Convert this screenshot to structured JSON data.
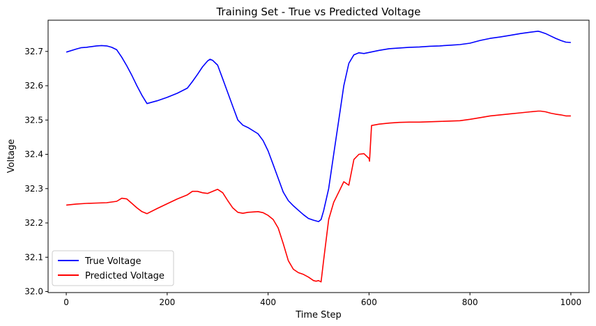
{
  "chart_data": {
    "type": "line",
    "title": "Training Set - True vs Predicted Voltage",
    "xlabel": "Time Step",
    "ylabel": "Voltage",
    "xlim": [
      -36,
      1036
    ],
    "ylim": [
      31.997,
      32.791
    ],
    "xticks": [
      0,
      200,
      400,
      600,
      800,
      1000
    ],
    "yticks": [
      32.0,
      32.1,
      32.2,
      32.3,
      32.4,
      32.5,
      32.6,
      32.7
    ],
    "grid": false,
    "legend_position": "lower-left",
    "series": [
      {
        "name": "True Voltage",
        "color": "#0000ff",
        "x": [
          0,
          20,
          30,
          40,
          50,
          60,
          70,
          80,
          90,
          100,
          110,
          120,
          130,
          140,
          150,
          160,
          170,
          180,
          200,
          220,
          240,
          250,
          260,
          270,
          280,
          285,
          290,
          300,
          310,
          320,
          330,
          340,
          350,
          360,
          380,
          390,
          400,
          410,
          420,
          430,
          440,
          450,
          460,
          470,
          480,
          490,
          500,
          505,
          510,
          520,
          530,
          540,
          550,
          560,
          570,
          580,
          590,
          600,
          620,
          640,
          660,
          680,
          700,
          720,
          740,
          760,
          780,
          800,
          820,
          840,
          860,
          880,
          900,
          920,
          935,
          940,
          950,
          960,
          970,
          980,
          990,
          1000
        ],
        "values": [
          32.698,
          32.707,
          32.711,
          32.712,
          32.714,
          32.716,
          32.717,
          32.716,
          32.712,
          32.705,
          32.683,
          32.658,
          32.63,
          32.6,
          32.572,
          32.548,
          32.552,
          32.556,
          32.566,
          32.578,
          32.593,
          32.612,
          32.633,
          32.655,
          32.672,
          32.677,
          32.674,
          32.66,
          32.62,
          32.58,
          32.54,
          32.5,
          32.485,
          32.478,
          32.46,
          32.44,
          32.41,
          32.37,
          32.33,
          32.29,
          32.265,
          32.25,
          32.237,
          32.224,
          32.213,
          32.208,
          32.204,
          32.21,
          32.235,
          32.3,
          32.4,
          32.5,
          32.6,
          32.665,
          32.69,
          32.696,
          32.694,
          32.697,
          32.703,
          32.708,
          32.71,
          32.712,
          32.713,
          32.715,
          32.716,
          32.718,
          32.72,
          32.724,
          32.732,
          32.738,
          32.742,
          32.747,
          32.752,
          32.756,
          32.759,
          32.757,
          32.752,
          32.745,
          32.738,
          32.732,
          32.727,
          32.726
        ]
      },
      {
        "name": "Predicted Voltage",
        "color": "#ff0000",
        "x": [
          0,
          20,
          40,
          60,
          80,
          100,
          110,
          120,
          130,
          140,
          150,
          160,
          180,
          200,
          220,
          240,
          250,
          260,
          270,
          280,
          290,
          300,
          310,
          320,
          330,
          340,
          350,
          360,
          380,
          390,
          400,
          410,
          420,
          430,
          440,
          450,
          460,
          470,
          480,
          490,
          495,
          500,
          505,
          510,
          520,
          530,
          540,
          550,
          560,
          570,
          580,
          590,
          600,
          601,
          605,
          620,
          640,
          660,
          680,
          700,
          720,
          740,
          760,
          780,
          800,
          820,
          840,
          860,
          880,
          900,
          920,
          935,
          940,
          950,
          960,
          970,
          980,
          990,
          1000
        ],
        "values": [
          32.252,
          32.255,
          32.257,
          32.258,
          32.259,
          32.263,
          32.272,
          32.27,
          32.257,
          32.244,
          32.233,
          32.227,
          32.242,
          32.256,
          32.27,
          32.282,
          32.292,
          32.292,
          32.288,
          32.286,
          32.292,
          32.298,
          32.288,
          32.265,
          32.244,
          32.231,
          32.228,
          32.231,
          32.233,
          32.23,
          32.222,
          32.21,
          32.185,
          32.14,
          32.09,
          32.065,
          32.055,
          32.05,
          32.042,
          32.032,
          32.03,
          32.032,
          32.028,
          32.09,
          32.21,
          32.26,
          32.29,
          32.32,
          32.31,
          32.385,
          32.4,
          32.402,
          32.388,
          32.38,
          32.484,
          32.488,
          32.491,
          32.493,
          32.494,
          32.494,
          32.495,
          32.496,
          32.497,
          32.498,
          32.502,
          32.507,
          32.512,
          32.515,
          32.518,
          32.521,
          32.524,
          32.526,
          32.526,
          32.524,
          32.52,
          32.517,
          32.515,
          32.512,
          32.512
        ]
      }
    ]
  }
}
